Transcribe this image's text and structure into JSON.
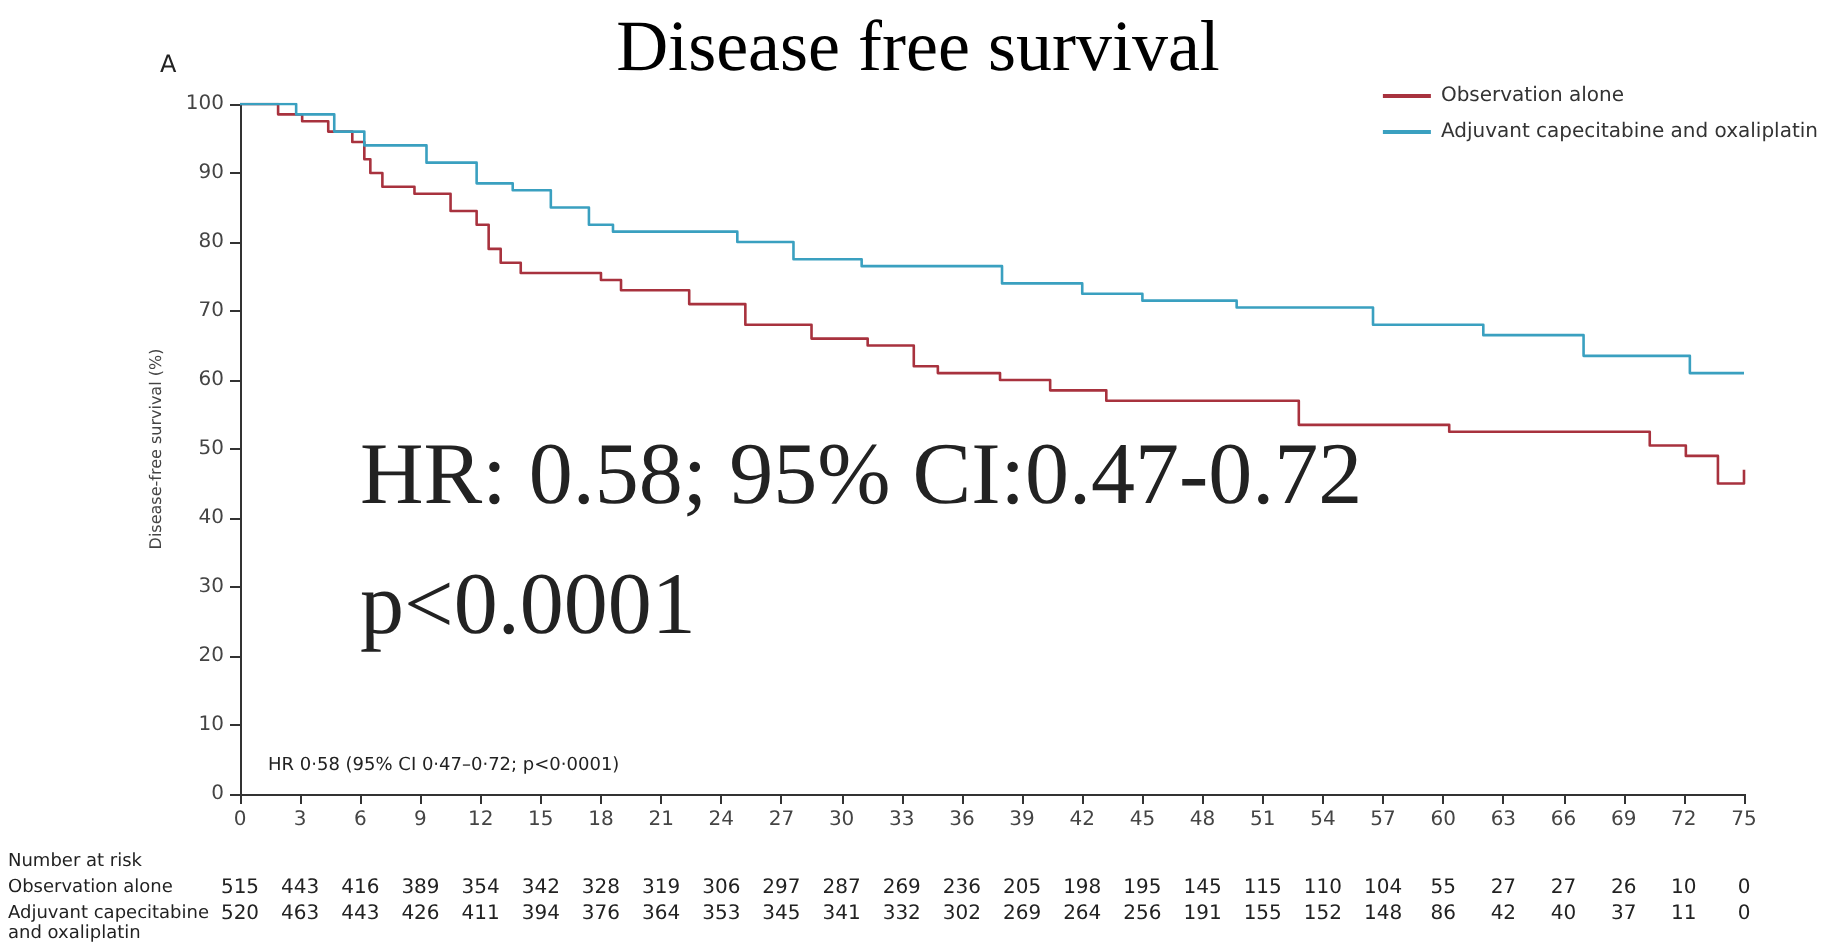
{
  "chart_data": {
    "type": "step",
    "title": "Disease free survival",
    "ylabel": "Disease-free survival (%)",
    "series": [
      {
        "name": "Observation alone",
        "color": "#a8323e",
        "x": [
          0,
          1.9,
          3.1,
          4.4,
          5.6,
          6.2,
          6.5,
          7.1,
          8.7,
          10.5,
          11.8,
          12.4,
          13,
          14,
          18,
          19,
          22.4,
          25.2,
          28.5,
          31.3,
          33.6,
          34.8,
          37.9,
          40.4,
          43.2,
          52.8,
          60.3,
          70.3,
          72.1,
          73.7,
          75
        ],
        "values": [
          100,
          98.5,
          97.5,
          96,
          94.5,
          92,
          90,
          88,
          87,
          84.5,
          82.5,
          79,
          77,
          75.5,
          74.5,
          73,
          71,
          68,
          66,
          65,
          62,
          61,
          60,
          58.5,
          57,
          53.5,
          52.5,
          50.5,
          49,
          45,
          47
        ]
      },
      {
        "name": "Adjuvant capecitabine and oxaliplatin",
        "color": "#3aa0c0",
        "x": [
          0,
          2.8,
          4.7,
          6.2,
          9.3,
          11.8,
          13.6,
          15.5,
          17.4,
          18.6,
          24.8,
          27.6,
          31,
          38,
          42,
          45,
          49.7,
          56.5,
          62,
          67,
          72.3,
          75
        ],
        "values": [
          100,
          98.5,
          96,
          94,
          91.5,
          88.5,
          87.5,
          85,
          82.5,
          81.5,
          80,
          77.5,
          76.5,
          74,
          72.5,
          71.5,
          70.5,
          68,
          66.5,
          63.5,
          61,
          61
        ]
      }
    ],
    "xlim": [
      0,
      75
    ],
    "xticks": [
      0,
      3,
      6,
      9,
      12,
      15,
      18,
      21,
      24,
      27,
      30,
      33,
      36,
      39,
      42,
      45,
      48,
      51,
      54,
      57,
      60,
      63,
      66,
      69,
      72,
      75
    ],
    "ylim": [
      0,
      100
    ],
    "yticks": [
      0,
      10,
      20,
      30,
      40,
      50,
      60,
      70,
      80,
      90,
      100
    ],
    "grid": false,
    "legend": "top right",
    "marker": "none",
    "line_style": "solid",
    "annotations": [
      "A",
      "HR 0·58 (95% CI 0·47–0·72; p<0·0001)",
      "HR: 0.58; 95% CI:0.47-0.72",
      "p<0.0001",
      "Number at risk",
      "Observation alone",
      "515 443 416 389 354 342 328 319 306 297 287 269 236 205 198 195 145 115 110 104 55 27 27 26 10 0",
      "Adjuvant capecitabine and oxaliplatin",
      "520 463 443 426 411 394 376 364 353 345 341 332 302 269 264 256 191 155 152 148 86 42 40 37 11 0"
    ]
  }
}
